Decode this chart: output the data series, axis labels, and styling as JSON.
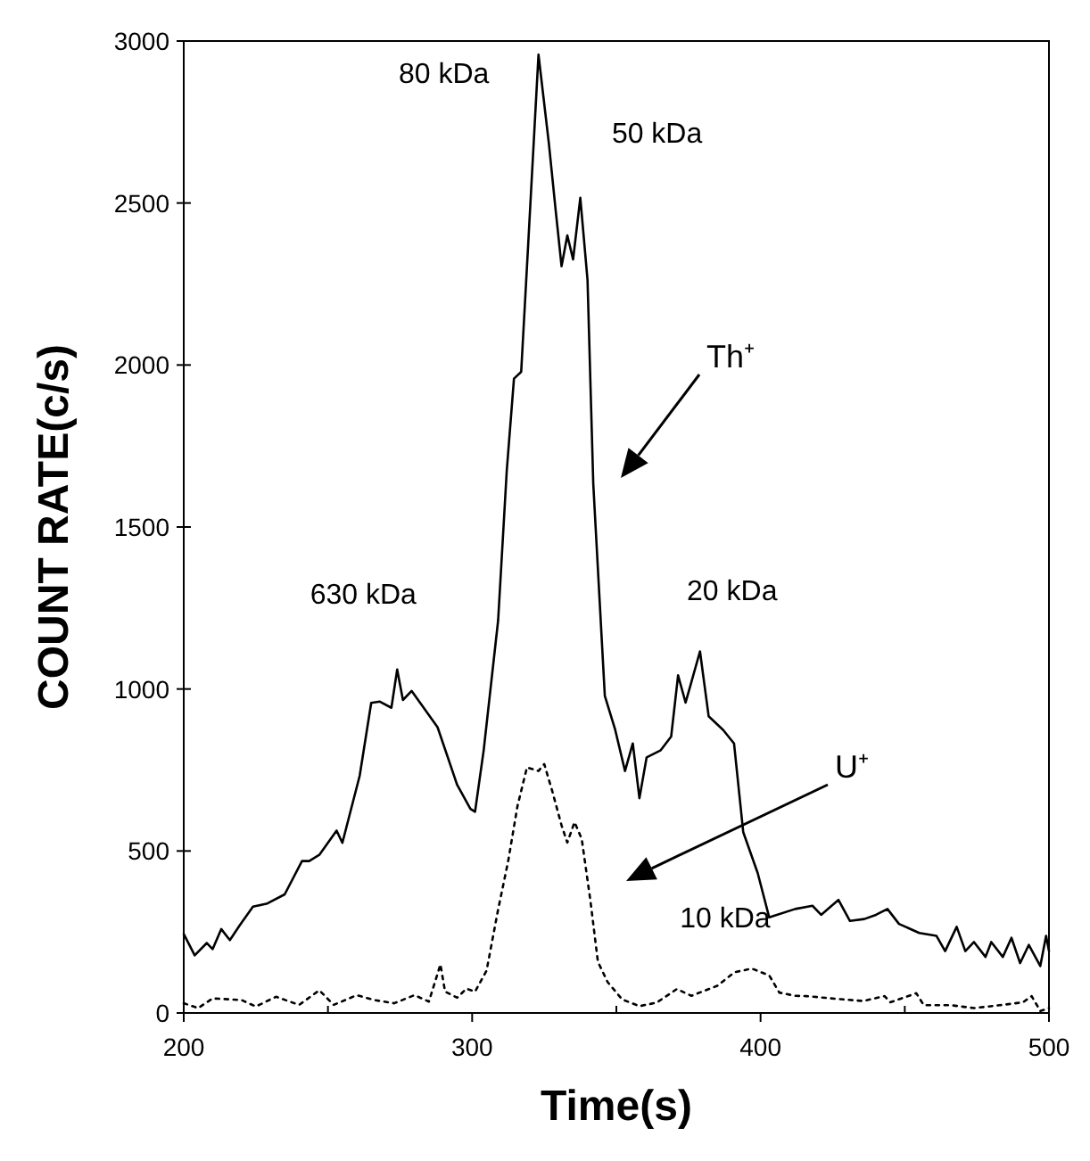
{
  "chart_data": {
    "type": "line",
    "xlabel": "Time(s)",
    "ylabel": "COUNT RATE(c/s)",
    "xlim": [
      200,
      500
    ],
    "ylim": [
      0,
      3000
    ],
    "xticks": [
      200,
      {
        "value": 250,
        "label": null
      },
      300,
      {
        "value": 350,
        "label": null
      },
      400,
      {
        "value": 450,
        "label": null
      },
      500
    ],
    "yticks": [
      0,
      500,
      1000,
      1500,
      2000,
      2500,
      3000
    ],
    "grid": false,
    "series": [
      {
        "color": "#000000",
        "line_style": "solid",
        "x": [
          200,
          203.8,
          208,
          210,
          213,
          216,
          219.5,
          224,
          229,
          235,
          241,
          243.5,
          247,
          253,
          255,
          261,
          265,
          268,
          272,
          274,
          276,
          279,
          288,
          294.8,
          299.4,
          301,
          304,
          309,
          312,
          314.5,
          317,
          319.4,
          323,
          326.6,
          329,
          331,
          333,
          335,
          337.5,
          340,
          342,
          346,
          349.6,
          353,
          355.7,
          358,
          360.5,
          365.4,
          369,
          371.4,
          374,
          376,
          379,
          382,
          387,
          390.8,
          394,
          399,
          403,
          412,
          418,
          421,
          427,
          431,
          436,
          440,
          444,
          448,
          455,
          461,
          464,
          468,
          471,
          474,
          478,
          480,
          484,
          487,
          490,
          493,
          497,
          499,
          500
        ],
        "values": [
          244,
          178,
          216,
          197,
          259,
          225,
          272,
          328,
          338,
          366,
          469,
          469,
          488,
          563,
          525,
          732,
          957,
          961,
          942,
          1060,
          966,
          994,
          882,
          704,
          630,
          621,
          811,
          1211,
          1674,
          1958,
          1979,
          2368,
          2958,
          2684,
          2474,
          2305,
          2400,
          2326,
          2516,
          2263,
          1632,
          979,
          874,
          747,
          832,
          663,
          789,
          811,
          853,
          1042,
          958,
          1021,
          1116,
          916,
          874,
          832,
          558,
          432,
          295,
          321,
          331,
          303,
          349,
          284,
          290,
          303,
          321,
          275,
          247,
          238,
          191,
          266,
          191,
          219,
          173,
          219,
          173,
          232,
          154,
          210,
          145,
          238,
          191
        ]
      },
      {
        "color": "#000000",
        "line_style": "dotted",
        "x": [
          200,
          205,
          210,
          220,
          225,
          232,
          240,
          247,
          252,
          260,
          266,
          273,
          280,
          285,
          289,
          290.6,
          294.8,
          298,
          301,
          305,
          309,
          312.5,
          315.7,
          319,
          323,
          325,
          327.8,
          331,
          333,
          335.5,
          338,
          341,
          343.6,
          347,
          352,
          358,
          364,
          371,
          376,
          385,
          391,
          397,
          403,
          406.5,
          412,
          416,
          427,
          435.5,
          443,
          445,
          454,
          456.6,
          466,
          474,
          483,
          491,
          494,
          497,
          500
        ],
        "values": [
          30,
          15,
          45,
          40,
          20,
          50,
          25,
          70,
          25,
          55,
          40,
          30,
          55,
          35,
          150,
          66,
          47,
          75,
          66,
          131,
          319,
          469,
          638,
          758,
          747,
          768,
          684,
          579,
          526,
          589,
          537,
          347,
          158,
          95,
          42,
          21,
          32,
          74,
          53,
          84,
          126,
          137,
          116,
          63,
          53,
          52,
          43,
          37,
          52,
          33,
          61,
          24,
          24,
          15,
          24,
          33,
          52,
          6,
          15
        ]
      }
    ],
    "annotations": [
      {
        "text": "630 kDa",
        "x": 274,
        "y": 1060
      },
      {
        "text": "80 kDa",
        "x": 323,
        "y": 2958
      },
      {
        "text": "50 kDa",
        "x": 337.5,
        "y": 2516
      },
      {
        "text": "20 kDa",
        "x": 379,
        "y": 1116
      },
      {
        "text": "10 kDa",
        "x": 397,
        "y": 137
      },
      "Th⁺",
      "U⁺"
    ]
  }
}
